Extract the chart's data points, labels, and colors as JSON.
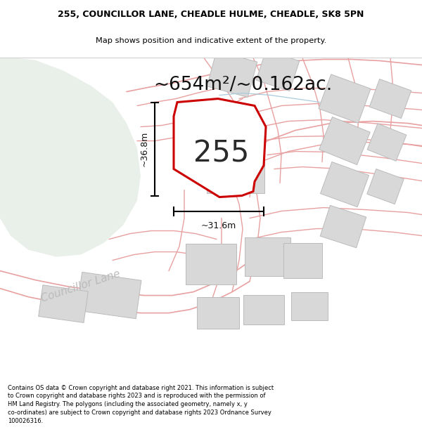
{
  "title_line1": "255, COUNCILLOR LANE, CHEADLE HULME, CHEADLE, SK8 5PN",
  "title_line2": "Map shows position and indicative extent of the property.",
  "area_text": "~654m²/~0.162ac.",
  "dim_vertical": "~36.8m",
  "dim_horizontal": "~31.6m",
  "property_number": "255",
  "footer_text": "Contains OS data © Crown copyright and database right 2021. This information is subject to Crown copyright and database rights 2023 and is reproduced with the permission of HM Land Registry. The polygons (including the associated geometry, namely x, y co-ordinates) are subject to Crown copyright and database rights 2023 Ordnance Survey 100026316.",
  "bg_map_color": "#f7f7f5",
  "green_area_color": "#e9efe9",
  "property_fill": "#ffffff",
  "property_outline": "#cc0000",
  "road_color": "#e8a0a0",
  "building_fill": "#d8d8d8",
  "building_outline": "#bbbbbb",
  "white": "#ffffff",
  "title_fontsize": 9.0,
  "subtitle_fontsize": 8.2,
  "area_fontsize": 19,
  "number_fontsize": 30,
  "dim_fontsize": 9.0,
  "footer_fontsize": 6.0,
  "councillor_lane_fontsize": 11
}
